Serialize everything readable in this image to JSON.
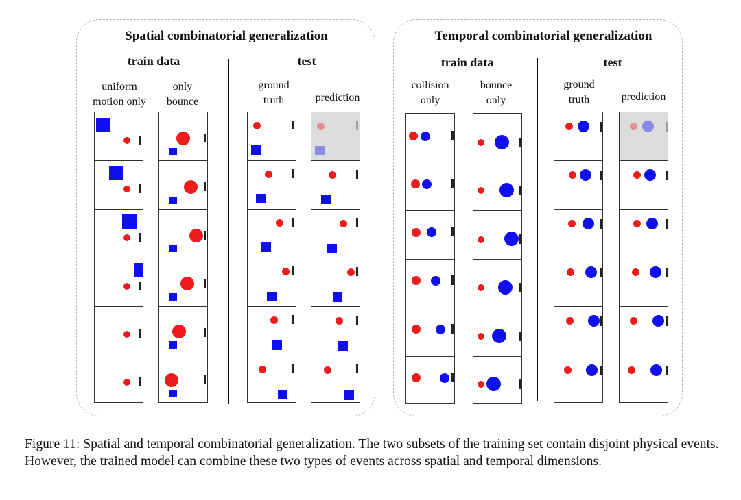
{
  "figure": {
    "panels": [
      {
        "title": "Spatial combinatorial generalization",
        "groups": [
          {
            "title": "train data",
            "columns": [
              {
                "label_lines": [
                  "uniform",
                  "motion only"
                ]
              },
              {
                "label_lines": [
                  "only",
                  "bounce"
                ]
              }
            ]
          },
          {
            "title": "test",
            "columns": [
              {
                "label_lines": [
                  "ground",
                  "truth"
                ]
              },
              {
                "label_lines": [
                  "prediction"
                ]
              }
            ]
          }
        ]
      },
      {
        "title": "Temporal combinatorial generalization",
        "groups": [
          {
            "title": "train data",
            "columns": [
              {
                "label_lines": [
                  "collision",
                  "only"
                ]
              },
              {
                "label_lines": [
                  "bounce",
                  "only"
                ]
              }
            ]
          },
          {
            "title": "test",
            "columns": [
              {
                "label_lines": [
                  "ground",
                  "truth"
                ]
              },
              {
                "label_lines": [
                  "prediction"
                ]
              }
            ]
          }
        ]
      }
    ],
    "legend_colors": {
      "red_ball": "#ee1c1c",
      "blue_object": "#1010ee",
      "wall_bar": "#222222",
      "first_prediction_frame_shade": "#dcdcdc"
    }
  },
  "caption": "Figure 11: Spatial and temporal combinatorial generalization. The two subsets of the training set contain disjoint physical events. However, the trained model can combine these two types of events across spatial and temporal dimensions."
}
